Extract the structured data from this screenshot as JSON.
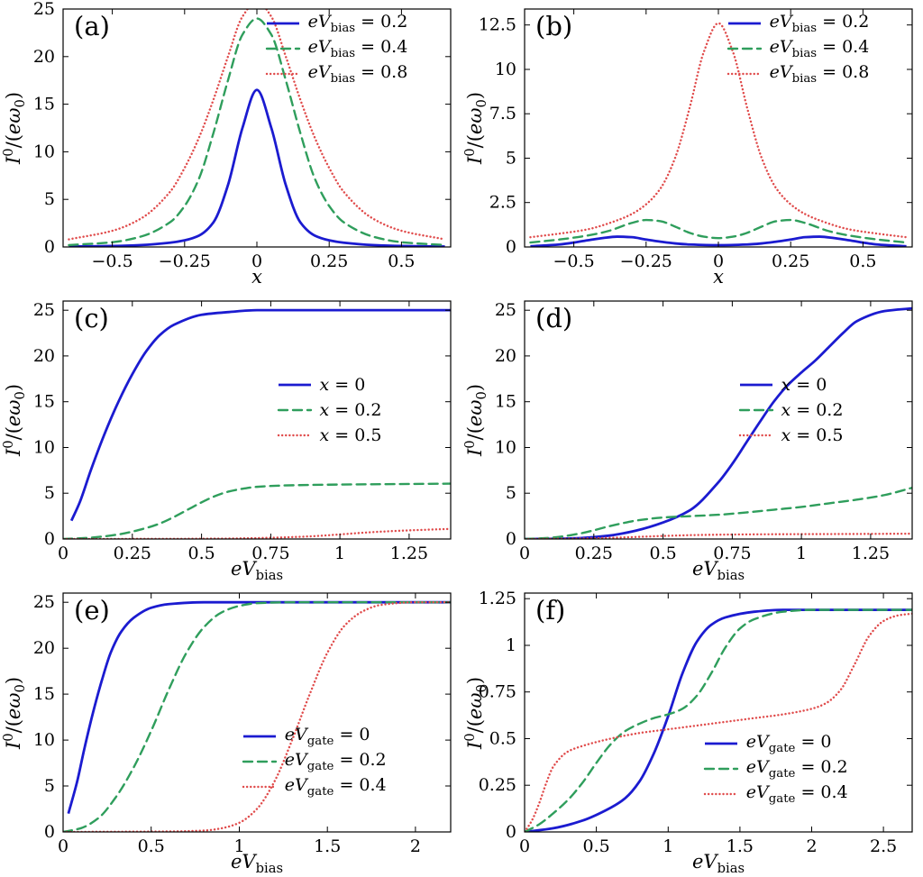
{
  "style": {
    "background": "#ffffff",
    "axis_color": "#000000",
    "tick_len": 6,
    "palette": {
      "blue": "#1b1bd0",
      "green": "#2f9e5c",
      "red": "#e04b4b"
    },
    "line_styles": {
      "solid": {
        "width": 2.8,
        "dash": ""
      },
      "dashed": {
        "width": 2.4,
        "dash": "10 6"
      },
      "dotted": {
        "width": 2.4,
        "dash": "0.1 4"
      }
    },
    "margins": {
      "l": 70,
      "r": 12,
      "t": 10,
      "b": 50
    }
  },
  "chart_data": [
    {
      "id": "a",
      "type": "line",
      "panel_label": "(a)",
      "xlabel": "x",
      "ylabel": "I^0/(eω_0)",
      "xlim": [
        -0.67,
        0.67
      ],
      "ylim": [
        0,
        25
      ],
      "xticks": {
        "values": [
          -0.5,
          -0.25,
          0,
          0.25,
          0.5
        ],
        "labels": [
          "−0.5",
          "−0.25",
          "0",
          "0.25",
          "0.5"
        ]
      },
      "yticks": {
        "values": [
          0,
          5,
          10,
          15,
          20,
          25
        ],
        "labels": [
          "0",
          "5",
          "10",
          "15",
          "20",
          "25"
        ]
      },
      "legend": {
        "x": 0.52,
        "y": 0.01
      },
      "series": [
        {
          "name": "eV_bias = 0.2",
          "color": "blue",
          "style": "solid",
          "x": [
            -0.65,
            -0.5,
            -0.4,
            -0.3,
            -0.25,
            -0.2,
            -0.15,
            -0.1,
            -0.05,
            0,
            0.05,
            0.1,
            0.15,
            0.2,
            0.25,
            0.3,
            0.4,
            0.5,
            0.65
          ],
          "y": [
            0.05,
            0.1,
            0.2,
            0.45,
            0.7,
            1.2,
            2.6,
            6.5,
            12.5,
            16.5,
            12.5,
            6.5,
            2.6,
            1.2,
            0.7,
            0.45,
            0.2,
            0.1,
            0.05
          ]
        },
        {
          "name": "eV_bias = 0.4",
          "color": "green",
          "style": "dashed",
          "x": [
            -0.65,
            -0.5,
            -0.4,
            -0.3,
            -0.25,
            -0.2,
            -0.15,
            -0.1,
            -0.05,
            0,
            0.05,
            0.1,
            0.15,
            0.2,
            0.25,
            0.3,
            0.4,
            0.5,
            0.65
          ],
          "y": [
            0.2,
            0.5,
            1.1,
            2.6,
            4.3,
            7.2,
            12,
            17.5,
            22.3,
            24,
            22.3,
            17.5,
            12,
            7.2,
            4.3,
            2.6,
            1.1,
            0.5,
            0.2
          ]
        },
        {
          "name": "eV_bias = 0.8",
          "color": "red",
          "style": "dotted",
          "x": [
            -0.65,
            -0.5,
            -0.4,
            -0.3,
            -0.25,
            -0.2,
            -0.15,
            -0.1,
            -0.05,
            0,
            0.05,
            0.1,
            0.15,
            0.2,
            0.25,
            0.3,
            0.4,
            0.5,
            0.65
          ],
          "y": [
            0.8,
            1.7,
            3,
            5.8,
            8.3,
            11.5,
            15.5,
            20,
            24.2,
            25.8,
            24.2,
            20,
            15.5,
            11.5,
            8.3,
            5.8,
            3,
            1.7,
            0.8
          ]
        }
      ]
    },
    {
      "id": "b",
      "type": "line",
      "panel_label": "(b)",
      "xlabel": "x",
      "ylabel": "I^0/(eω_0)",
      "xlim": [
        -0.67,
        0.67
      ],
      "ylim": [
        0,
        13.4
      ],
      "xticks": {
        "values": [
          -0.5,
          -0.25,
          0,
          0.25,
          0.5
        ],
        "labels": [
          "−0.5",
          "−0.25",
          "0",
          "0.25",
          "0.5"
        ]
      },
      "yticks": {
        "values": [
          0,
          2.5,
          5,
          7.5,
          10,
          12.5
        ],
        "labels": [
          "0",
          "2.5",
          "5",
          "7.5",
          "10",
          "12.5"
        ]
      },
      "legend": {
        "x": 0.52,
        "y": 0.01
      },
      "series": [
        {
          "name": "eV_bias = 0.2",
          "color": "blue",
          "style": "solid",
          "x": [
            -0.65,
            -0.55,
            -0.45,
            -0.4,
            -0.35,
            -0.3,
            -0.25,
            -0.2,
            -0.15,
            -0.1,
            0,
            0.1,
            0.15,
            0.2,
            0.25,
            0.3,
            0.35,
            0.4,
            0.45,
            0.55,
            0.65
          ],
          "y": [
            0.04,
            0.14,
            0.38,
            0.5,
            0.58,
            0.55,
            0.42,
            0.3,
            0.2,
            0.14,
            0.1,
            0.14,
            0.2,
            0.3,
            0.42,
            0.55,
            0.58,
            0.5,
            0.38,
            0.14,
            0.04
          ]
        },
        {
          "name": "eV_bias = 0.4",
          "color": "green",
          "style": "dashed",
          "x": [
            -0.65,
            -0.55,
            -0.45,
            -0.38,
            -0.3,
            -0.25,
            -0.2,
            -0.15,
            -0.1,
            -0.05,
            0,
            0.05,
            0.1,
            0.15,
            0.2,
            0.25,
            0.3,
            0.38,
            0.45,
            0.55,
            0.65
          ],
          "y": [
            0.25,
            0.42,
            0.65,
            0.9,
            1.35,
            1.52,
            1.45,
            1.15,
            0.8,
            0.58,
            0.5,
            0.58,
            0.8,
            1.15,
            1.45,
            1.52,
            1.35,
            0.9,
            0.65,
            0.42,
            0.25
          ]
        },
        {
          "name": "eV_bias = 0.8",
          "color": "red",
          "style": "dotted",
          "x": [
            -0.65,
            -0.55,
            -0.45,
            -0.35,
            -0.3,
            -0.25,
            -0.2,
            -0.15,
            -0.1,
            -0.05,
            0,
            0.05,
            0.1,
            0.15,
            0.2,
            0.25,
            0.3,
            0.35,
            0.45,
            0.55,
            0.65
          ],
          "y": [
            0.55,
            0.75,
            1,
            1.5,
            1.85,
            2.4,
            3.3,
            5,
            7.8,
            11,
            12.6,
            11,
            7.8,
            5,
            3.3,
            2.4,
            1.85,
            1.5,
            1,
            0.75,
            0.55
          ]
        }
      ]
    },
    {
      "id": "c",
      "type": "line",
      "panel_label": "(c)",
      "xlabel": "eV_bias",
      "ylabel": "I^0/(eω_0)",
      "xlim": [
        0,
        1.4
      ],
      "ylim": [
        0,
        26
      ],
      "xticks": {
        "values": [
          0,
          0.25,
          0.5,
          0.75,
          1,
          1.25
        ],
        "labels": [
          "0",
          "0.25",
          "0.5",
          "0.75",
          "1",
          "1.25"
        ]
      },
      "yticks": {
        "values": [
          0,
          5,
          10,
          15,
          20,
          25
        ],
        "labels": [
          "0",
          "5",
          "10",
          "15",
          "20",
          "25"
        ]
      },
      "legend": {
        "x": 0.55,
        "y": 0.3
      },
      "series": [
        {
          "name": "x = 0",
          "color": "blue",
          "style": "solid",
          "x": [
            0.03,
            0.06,
            0.1,
            0.15,
            0.2,
            0.25,
            0.3,
            0.35,
            0.4,
            0.5,
            0.6,
            0.7,
            0.9,
            1.1,
            1.4
          ],
          "y": [
            2,
            4,
            7.5,
            11.5,
            15,
            18,
            20.5,
            22.3,
            23.4,
            24.5,
            24.8,
            25,
            25,
            25,
            25
          ]
        },
        {
          "name": "x = 0.2",
          "color": "green",
          "style": "dashed",
          "x": [
            0,
            0.1,
            0.2,
            0.3,
            0.35,
            0.4,
            0.45,
            0.5,
            0.55,
            0.6,
            0.65,
            0.7,
            0.8,
            1,
            1.2,
            1.4
          ],
          "y": [
            0,
            0.15,
            0.5,
            1.2,
            1.7,
            2.4,
            3.2,
            4,
            4.7,
            5.2,
            5.5,
            5.7,
            5.85,
            5.95,
            6,
            6.05
          ]
        },
        {
          "name": "x = 0.5",
          "color": "red",
          "style": "dotted",
          "x": [
            0,
            0.4,
            0.6,
            0.7,
            0.8,
            0.9,
            1,
            1.1,
            1.2,
            1.3,
            1.4
          ],
          "y": [
            0,
            0.02,
            0.05,
            0.1,
            0.18,
            0.3,
            0.5,
            0.72,
            0.88,
            1,
            1.1
          ]
        }
      ]
    },
    {
      "id": "d",
      "type": "line",
      "panel_label": "(d)",
      "xlabel": "eV_bias",
      "ylabel": "I^0/(eω_0)",
      "xlim": [
        0,
        1.4
      ],
      "ylim": [
        0,
        26
      ],
      "xticks": {
        "values": [
          0,
          0.25,
          0.5,
          0.75,
          1,
          1.25
        ],
        "labels": [
          "0",
          "0.25",
          "0.5",
          "0.75",
          "1",
          "1.25"
        ]
      },
      "yticks": {
        "values": [
          0,
          5,
          10,
          15,
          20,
          25
        ],
        "labels": [
          "0",
          "5",
          "10",
          "15",
          "20",
          "25"
        ]
      },
      "legend": {
        "x": 0.55,
        "y": 0.3
      },
      "series": [
        {
          "name": "x = 0",
          "color": "blue",
          "style": "solid",
          "x": [
            0,
            0.1,
            0.2,
            0.3,
            0.4,
            0.5,
            0.6,
            0.7,
            0.75,
            0.8,
            0.85,
            0.9,
            0.95,
            1,
            1.05,
            1.1,
            1.15,
            1.2,
            1.3,
            1.4
          ],
          "y": [
            0,
            0.02,
            0.1,
            0.35,
            0.9,
            1.8,
            3.2,
            6.2,
            8.2,
            10.5,
            12.8,
            15,
            16.8,
            18.2,
            19.5,
            21,
            22.5,
            23.8,
            24.9,
            25.2
          ]
        },
        {
          "name": "x = 0.2",
          "color": "green",
          "style": "dashed",
          "x": [
            0,
            0.1,
            0.2,
            0.25,
            0.3,
            0.35,
            0.4,
            0.5,
            0.6,
            0.7,
            0.8,
            0.9,
            1,
            1.1,
            1.2,
            1.3,
            1.4
          ],
          "y": [
            0,
            0.15,
            0.6,
            0.95,
            1.35,
            1.7,
            2,
            2.35,
            2.5,
            2.65,
            2.9,
            3.2,
            3.5,
            3.9,
            4.3,
            4.8,
            5.6
          ]
        },
        {
          "name": "x = 0.5",
          "color": "red",
          "style": "dotted",
          "x": [
            0,
            0.2,
            0.3,
            0.4,
            0.5,
            0.6,
            0.7,
            0.8,
            1,
            1.2,
            1.4
          ],
          "y": [
            0,
            0.05,
            0.12,
            0.22,
            0.33,
            0.42,
            0.47,
            0.5,
            0.53,
            0.55,
            0.58
          ]
        }
      ]
    },
    {
      "id": "e",
      "type": "line",
      "panel_label": "(e)",
      "xlabel": "eV_bias",
      "ylabel": "I^0/(eω_0)",
      "xlim": [
        0,
        2.2
      ],
      "ylim": [
        0,
        26
      ],
      "xticks": {
        "values": [
          0,
          0.5,
          1,
          1.5,
          2
        ],
        "labels": [
          "0",
          "0.5",
          "1",
          "1.5",
          "2"
        ]
      },
      "yticks": {
        "values": [
          0,
          5,
          10,
          15,
          20,
          25
        ],
        "labels": [
          "0",
          "5",
          "10",
          "15",
          "20",
          "25"
        ]
      },
      "legend": {
        "x": 0.46,
        "y": 0.55
      },
      "series": [
        {
          "name": "eV_gate = 0",
          "color": "blue",
          "style": "solid",
          "x": [
            0.03,
            0.08,
            0.12,
            0.17,
            0.22,
            0.27,
            0.33,
            0.4,
            0.5,
            0.6,
            0.8,
            1,
            1.5,
            2.2
          ],
          "y": [
            2,
            5.5,
            9,
            13,
            16.5,
            19.5,
            21.8,
            23.3,
            24.4,
            24.8,
            25,
            25,
            25,
            25
          ]
        },
        {
          "name": "eV_gate = 0.2",
          "color": "green",
          "style": "dashed",
          "x": [
            0,
            0.1,
            0.2,
            0.3,
            0.4,
            0.5,
            0.6,
            0.7,
            0.8,
            0.9,
            1,
            1.1,
            1.3,
            2.2
          ],
          "y": [
            0,
            0.4,
            1.5,
            3.8,
            7,
            11,
            15.5,
            19.5,
            22.3,
            23.9,
            24.6,
            24.9,
            25,
            25
          ]
        },
        {
          "name": "eV_gate = 0.4",
          "color": "red",
          "style": "dotted",
          "x": [
            0,
            0.6,
            0.8,
            0.9,
            1,
            1.1,
            1.2,
            1.3,
            1.4,
            1.5,
            1.6,
            1.7,
            1.8,
            2,
            2.2
          ],
          "y": [
            0,
            0.05,
            0.15,
            0.4,
            1,
            2.5,
            5.5,
            10,
            15,
            19.5,
            22.5,
            24,
            24.7,
            25,
            25
          ]
        }
      ]
    },
    {
      "id": "f",
      "type": "line",
      "panel_label": "(f)",
      "xlabel": "eV_bias",
      "ylabel": "I^0/(eω_0)",
      "xlim": [
        0,
        2.7
      ],
      "ylim": [
        0,
        1.28
      ],
      "xticks": {
        "values": [
          0,
          0.5,
          1,
          1.5,
          2,
          2.5
        ],
        "labels": [
          "0",
          "0.5",
          "1",
          "1.5",
          "2",
          "2.5"
        ]
      },
      "yticks": {
        "values": [
          0,
          0.25,
          0.5,
          0.75,
          1,
          1.25
        ],
        "labels": [
          "0",
          "0.25",
          "0.5",
          "0.75",
          "1",
          "1.25"
        ]
      },
      "legend": {
        "x": 0.46,
        "y": 0.58
      },
      "series": [
        {
          "name": "eV_gate = 0",
          "color": "blue",
          "style": "solid",
          "x": [
            0,
            0.2,
            0.4,
            0.6,
            0.7,
            0.8,
            0.9,
            1,
            1.1,
            1.2,
            1.3,
            1.4,
            1.6,
            1.8,
            2.2,
            2.7
          ],
          "y": [
            0,
            0.02,
            0.06,
            0.13,
            0.18,
            0.27,
            0.42,
            0.62,
            0.85,
            1.02,
            1.11,
            1.15,
            1.18,
            1.19,
            1.19,
            1.19
          ]
        },
        {
          "name": "eV_gate = 0.2",
          "color": "green",
          "style": "dashed",
          "x": [
            0,
            0.1,
            0.2,
            0.3,
            0.4,
            0.5,
            0.6,
            0.7,
            0.8,
            0.9,
            1,
            1.1,
            1.2,
            1.3,
            1.4,
            1.5,
            1.6,
            1.8,
            2,
            2.7
          ],
          "y": [
            0,
            0.04,
            0.1,
            0.17,
            0.26,
            0.37,
            0.47,
            0.54,
            0.58,
            0.61,
            0.63,
            0.66,
            0.73,
            0.85,
            0.99,
            1.09,
            1.14,
            1.18,
            1.19,
            1.19
          ]
        },
        {
          "name": "eV_gate = 0.4",
          "color": "red",
          "style": "dotted",
          "x": [
            0,
            0.05,
            0.1,
            0.15,
            0.2,
            0.3,
            0.4,
            0.6,
            0.8,
            1,
            1.2,
            1.4,
            1.6,
            1.8,
            2,
            2.1,
            2.2,
            2.3,
            2.4,
            2.5,
            2.6,
            2.7
          ],
          "y": [
            0,
            0.06,
            0.15,
            0.26,
            0.35,
            0.43,
            0.46,
            0.5,
            0.53,
            0.55,
            0.57,
            0.59,
            0.61,
            0.63,
            0.66,
            0.69,
            0.76,
            0.9,
            1.05,
            1.13,
            1.16,
            1.17
          ]
        }
      ]
    }
  ]
}
